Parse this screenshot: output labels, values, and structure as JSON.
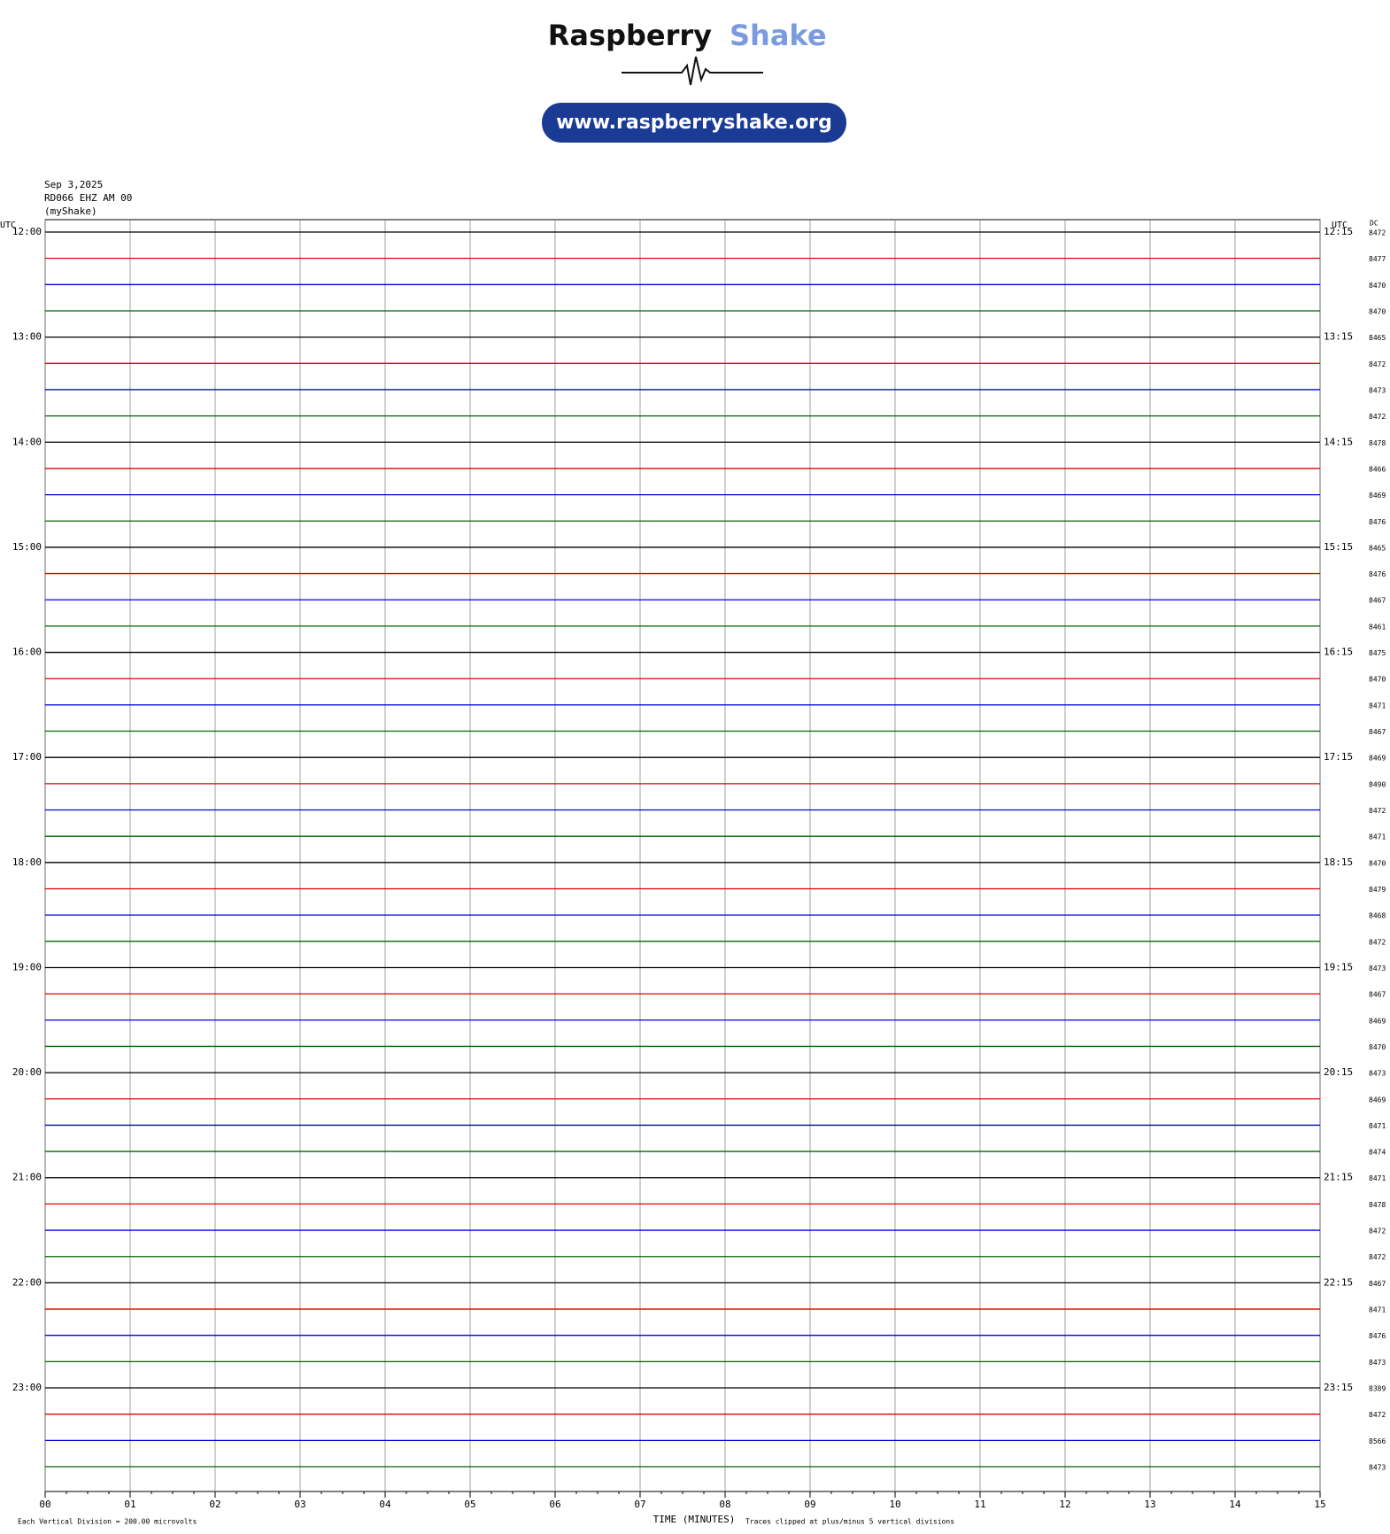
{
  "header": {
    "brand_main": "Raspberry",
    "brand_accent": "Shake",
    "url": "www.raspberryshake.org"
  },
  "chart_data": {
    "type": "helicorder",
    "date": "Sep 3,2025",
    "station": "RD066 EHZ AM 00",
    "source": "(myShake)",
    "utc_left": "UTC",
    "utc_right": "UTC",
    "dc_label": "DC",
    "trace_colors": [
      "#000000",
      "#e00000",
      "#0000e0",
      "#006400"
    ],
    "left_labels": [
      "12:00",
      "13:00",
      "14:00",
      "15:00",
      "16:00",
      "17:00",
      "18:00",
      "19:00",
      "20:00",
      "21:00",
      "22:00",
      "23:00"
    ],
    "right_labels": [
      "12:15",
      "13:15",
      "14:15",
      "15:15",
      "16:15",
      "17:15",
      "18:15",
      "19:15",
      "20:15",
      "21:15",
      "22:15",
      "23:15"
    ],
    "dc_values": [
      8472,
      8477,
      8470,
      8470,
      8465,
      8472,
      8473,
      8472,
      8478,
      8466,
      8469,
      8476,
      8465,
      8476,
      8467,
      8461,
      8475,
      8470,
      8471,
      8467,
      8469,
      8490,
      8472,
      8471,
      8470,
      8479,
      8468,
      8472,
      8473,
      8467,
      8469,
      8470,
      8473,
      8469,
      8471,
      8474,
      8471,
      8478,
      8472,
      8472,
      8467,
      8471,
      8476,
      8473,
      8389,
      8472,
      8566,
      8473
    ],
    "xlim": [
      0,
      15
    ],
    "xticks": [
      {
        "value": 0,
        "label": "00"
      },
      {
        "value": 1,
        "label": "01"
      },
      {
        "value": 2,
        "label": "02"
      },
      {
        "value": 3,
        "label": "03"
      },
      {
        "value": 4,
        "label": "04"
      },
      {
        "value": 5,
        "label": "05"
      },
      {
        "value": 6,
        "label": "06"
      },
      {
        "value": 7,
        "label": "07"
      },
      {
        "value": 8,
        "label": "08"
      },
      {
        "value": 9,
        "label": "09"
      },
      10,
      11,
      12,
      13,
      14,
      15
    ],
    "xlabel": "TIME (MINUTES)",
    "scale_note": "Each Vertical Division = 200.00 microvolts",
    "clip_note": "Traces clipped at plus/minus 5 vertical divisions"
  }
}
